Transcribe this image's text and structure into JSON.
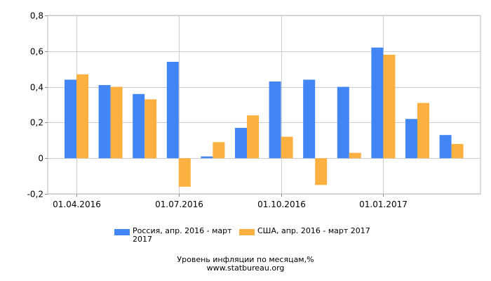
{
  "chart_data": {
    "type": "bar",
    "categories": [
      "2016-04",
      "2016-05",
      "2016-06",
      "2016-07",
      "2016-08",
      "2016-09",
      "2016-10",
      "2016-11",
      "2016-12",
      "2017-01",
      "2017-02",
      "2017-03"
    ],
    "series": [
      {
        "name": "Россия, апр. 2016 - март 2017",
        "color": "#4285f4",
        "values": [
          0.44,
          0.41,
          0.36,
          0.54,
          0.01,
          0.17,
          0.43,
          0.44,
          0.4,
          0.62,
          0.22,
          0.13
        ]
      },
      {
        "name": "США, апр. 2016 - март 2017",
        "color": "#fbb040",
        "values": [
          0.47,
          0.4,
          0.33,
          -0.16,
          0.09,
          0.24,
          0.12,
          -0.15,
          0.03,
          0.58,
          0.31,
          0.08
        ]
      }
    ],
    "x_tick_labels": [
      {
        "label": "01.04.2016",
        "index": 0
      },
      {
        "label": "01.07.2016",
        "index": 3
      },
      {
        "label": "01.10.2016",
        "index": 6
      },
      {
        "label": "01.01.2017",
        "index": 9
      }
    ],
    "y_ticks": [
      "-0,2",
      "0",
      "0,2",
      "0,4",
      "0,6",
      "0,8"
    ],
    "y_tick_values": [
      -0.2,
      0,
      0.2,
      0.4,
      0.6,
      0.8
    ],
    "ylim": [
      -0.2,
      0.8
    ],
    "grid": true,
    "legend_position": "bottom",
    "title": "Уровень инфляции по месяцам,%",
    "source": "www.statbureau.org"
  }
}
